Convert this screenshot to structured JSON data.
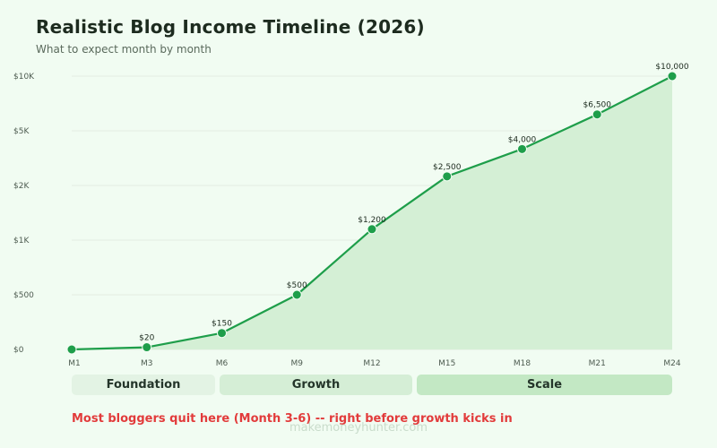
{
  "chart_data": {
    "type": "line",
    "title": "Realistic Blog Income Timeline (2026)",
    "subtitle": "What to expect month by month",
    "x": [
      "M1",
      "M3",
      "M6",
      "M9",
      "M12",
      "M15",
      "M18",
      "M21",
      "M24"
    ],
    "series": [
      {
        "values": [
          0,
          20,
          150,
          500,
          1200,
          2500,
          4000,
          6500,
          10000
        ],
        "labels": [
          "",
          "$20",
          "$150",
          "$500",
          "$1,200",
          "$2,500",
          "$4,000",
          "$6,500",
          "$10,000"
        ]
      }
    ],
    "y_ticks": [
      {
        "value": 0,
        "label": "$0"
      },
      {
        "value": 500,
        "label": "$500"
      },
      {
        "value": 1000,
        "label": "$1K"
      },
      {
        "value": 2000,
        "label": "$2K"
      },
      {
        "value": 5000,
        "label": "$5K"
      },
      {
        "value": 10000,
        "label": "$10K"
      }
    ],
    "ylim": [
      0,
      10000
    ],
    "grid": true,
    "area_fill": true,
    "colors": {
      "line": "#1e9e4a",
      "area": "#d4efd5",
      "grid": "#dde9de",
      "warning": "#e23b3b"
    }
  },
  "phases": [
    {
      "label": "Foundation"
    },
    {
      "label": "Growth"
    },
    {
      "label": "Scale"
    }
  ],
  "annotation": "Most bloggers quit here (Month 3-6) -- right before growth kicks in",
  "watermark": "makemoneyhunter.com"
}
